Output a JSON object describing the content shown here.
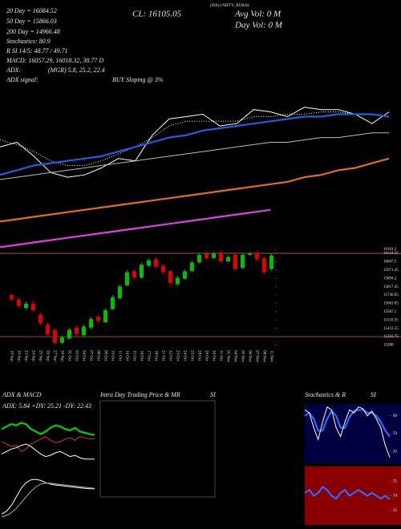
{
  "header": {
    "title": "(Nifty) NIFTY_RURAL",
    "ema20": "20 Day = 16084.52",
    "ema50": "50 Day = 15866.03",
    "close": "CL: 16105.05",
    "avg_vol": "Avg Vol: 0  M",
    "day_vol": "Day Vol: 0  M",
    "ema200": "200 Day = 14966.48",
    "stochastics": "Stochastics: 80.9",
    "rsi": "R SI 14/5: 48.77 / 49.71",
    "macd": "MACD: 16057.29, 16018.32, 38.77 D",
    "adx_label": "ADX:",
    "adx_values": "(MGR) 5.8, 25.2, 22.4",
    "adx_signal_label": "ADX signal:",
    "adx_signal": "BUY Sloping @ 3%"
  },
  "chart_data": [
    {
      "type": "candlestick",
      "categories": [
        "19 Sep",
        "20 Sep",
        "23 Sep",
        "24 Sep",
        "25 Sep",
        "26 Sep",
        "27 Sep",
        "30 Sep",
        "01 Oct",
        "03 Oct",
        "04 Oct",
        "07 Oct",
        "08 Oct",
        "09 Oct",
        "10 Oct",
        "11 Oct",
        "14 Oct",
        "15 Oct",
        "16 Oct",
        "17 Oct",
        "18 Oct",
        "21 Oct",
        "22 Oct",
        "23 Oct",
        "24 Oct",
        "25 Oct",
        "28 Oct",
        "29 Oct",
        "30 Oct",
        "31 Oct",
        "01 Nov",
        "04 Nov",
        "05 Nov",
        "06 Nov",
        "07 Nov",
        "08 Nov",
        "11 Nov"
      ],
      "open": [
        15740,
        15700,
        15620,
        15660,
        15560,
        15470,
        15420,
        15300,
        15340,
        15440,
        15370,
        15440,
        15540,
        15490,
        15610,
        15710,
        15830,
        15960,
        15900,
        16010,
        16070,
        16010,
        15960,
        15840,
        15890,
        15960,
        16040,
        16120,
        16080,
        16130,
        16050,
        16110,
        15990,
        16110,
        16130,
        16080,
        15980
      ],
      "high": [
        15760,
        15720,
        15680,
        15690,
        15580,
        15490,
        15430,
        15370,
        15440,
        15460,
        15470,
        15540,
        15560,
        15620,
        15740,
        15840,
        15970,
        15980,
        16040,
        16080,
        16090,
        16030,
        15970,
        15920,
        15980,
        16060,
        16130,
        16140,
        16140,
        16150,
        16110,
        16130,
        16130,
        16140,
        16150,
        16100,
        16120
      ],
      "low": [
        15680,
        15620,
        15600,
        15580,
        15460,
        15360,
        15280,
        15290,
        15330,
        15360,
        15350,
        15420,
        15480,
        15480,
        15600,
        15700,
        15820,
        15880,
        15890,
        16000,
        15990,
        15930,
        15830,
        15820,
        15880,
        15950,
        16030,
        16060,
        16070,
        16030,
        16040,
        15960,
        15980,
        16100,
        16050,
        15930,
        15960
      ],
      "close": [
        15700,
        15640,
        15660,
        15600,
        15480,
        15380,
        15300,
        15350,
        15420,
        15380,
        15450,
        15520,
        15500,
        15600,
        15720,
        15820,
        15950,
        15900,
        16020,
        16060,
        16000,
        15950,
        15850,
        15900,
        15960,
        16040,
        16110,
        16080,
        16120,
        16050,
        16090,
        15980,
        16110,
        16120,
        16070,
        15950,
        16105.05
      ],
      "up_color": "#00c000",
      "down_color": "#e00000",
      "levels": [
        16124.55,
        15356.75
      ],
      "level_color": "#c8641e",
      "ylim": [
        15261,
        16243
      ],
      "yticks": [
        16161.3,
        16124.55,
        16047.5,
        15971.45,
        15894.2,
        15817.45,
        15740.65,
        15663.85,
        15587.1,
        15510.35,
        15433.55,
        15356.75,
        15280
      ]
    },
    {
      "type": "line",
      "ylim": [
        -10,
        100
      ],
      "series": [
        {
          "color": "#ffffff",
          "style": "solid",
          "values": [
            37,
            39,
            33,
            26,
            24,
            25,
            28,
            32,
            31,
            42,
            49,
            50,
            51,
            46,
            47,
            53,
            52,
            50,
            54,
            53,
            53,
            51,
            47,
            52
          ]
        },
        {
          "color": "#ffffff",
          "style": "dotted",
          "values": [
            40,
            38,
            35,
            31,
            29,
            29,
            31,
            34,
            37,
            41,
            46,
            48,
            48,
            48,
            48,
            50,
            50,
            51,
            51,
            52,
            52,
            51,
            51,
            50
          ]
        },
        {
          "color": "#1f5fe0",
          "style": "bold",
          "values": [
            25,
            27,
            29,
            30,
            31,
            32,
            33,
            35,
            37,
            39,
            41,
            42,
            44,
            45,
            46,
            47,
            48,
            49,
            50,
            50,
            51,
            51,
            51,
            50
          ]
        },
        {
          "color": "#bbbbbb",
          "style": "solid",
          "values": [
            23,
            24,
            25,
            26,
            27,
            28,
            29,
            30,
            31,
            32,
            33,
            34,
            35,
            36,
            37,
            38,
            39,
            39,
            40,
            41,
            41,
            42,
            43,
            43
          ]
        },
        {
          "color": "#e07010",
          "style": "bold",
          "values": [
            5,
            6,
            7,
            8,
            9,
            10,
            11,
            12,
            13,
            14,
            15,
            16,
            17,
            18,
            19,
            20,
            21,
            22,
            24,
            25,
            27,
            28,
            30,
            32
          ]
        },
        {
          "color": "#e040e0",
          "style": "bold",
          "values": [
            -6,
            -5,
            -4,
            -3,
            -2,
            -1,
            0,
            1,
            2,
            3,
            4,
            5,
            6,
            7,
            8,
            9,
            10,
            null,
            null,
            null,
            null,
            null,
            null,
            null
          ]
        }
      ]
    },
    {
      "type": "line",
      "title": "ADX  & MACD",
      "annotation": "ADX: 5.84  +DY: 25.21  -DY: 22.43",
      "ylim": [
        0,
        45
      ],
      "series": [
        {
          "color": "#00d000",
          "style": "bold",
          "values": [
            30,
            32,
            34,
            33,
            35,
            34,
            30,
            28,
            26,
            28,
            31,
            33,
            32,
            30,
            29,
            31,
            28,
            27,
            26,
            25.21
          ]
        },
        {
          "color": "#e03030",
          "style": "solid",
          "values": [
            20,
            18,
            16,
            17,
            12,
            14,
            18,
            20,
            22,
            24,
            21,
            19,
            20,
            22,
            23,
            21,
            24,
            23,
            22,
            22.43
          ]
        },
        {
          "color": "#ffffff",
          "style": "solid",
          "values": [
            10,
            12,
            14,
            15,
            17,
            18,
            16,
            13,
            10,
            8,
            9,
            11,
            12,
            10,
            8,
            9,
            7,
            6,
            6,
            5.84
          ]
        }
      ]
    },
    {
      "type": "line",
      "ylim": [
        -80,
        100
      ],
      "series": [
        {
          "color": "#ffffff",
          "style": "solid",
          "values": [
            -50,
            -40,
            -20,
            10,
            40,
            60,
            70,
            72,
            68,
            60,
            55,
            52,
            50,
            48,
            46,
            44,
            42,
            40,
            39,
            38.77
          ]
        },
        {
          "color": "#aaaaaa",
          "style": "solid",
          "values": [
            -60,
            -55,
            -45,
            -30,
            -10,
            10,
            30,
            45,
            55,
            58,
            58,
            56,
            54,
            52,
            50,
            48,
            46,
            44,
            42,
            40
          ]
        }
      ]
    },
    {
      "type": "panel",
      "title": "Intra Day Trading Price  & MR",
      "title_suffix": "SI"
    },
    {
      "type": "line",
      "title": "Stochastics  & R",
      "title_suffix": "SI",
      "background": "#000040",
      "ylim": [
        0,
        100
      ],
      "yticks": [
        80,
        50,
        20
      ],
      "series": [
        {
          "color": "#2a6cff",
          "style": "bold",
          "values": [
            80,
            85,
            75,
            55,
            55,
            75,
            88,
            80,
            60,
            60,
            78,
            88,
            90,
            90,
            85,
            85,
            80,
            70,
            55,
            45
          ]
        },
        {
          "color": "#ffffff",
          "style": "solid",
          "values": [
            90,
            85,
            60,
            40,
            70,
            95,
            90,
            60,
            45,
            70,
            90,
            85,
            95,
            92,
            80,
            88,
            75,
            60,
            30,
            10
          ]
        }
      ]
    },
    {
      "type": "line",
      "background": "#8a0000",
      "ylim": [
        40,
        60
      ],
      "yticks": [
        55,
        50,
        45
      ],
      "series": [
        {
          "color": "#2a6cff",
          "style": "bold",
          "values": [
            51,
            52,
            50,
            51,
            53,
            52,
            50,
            49,
            51,
            52,
            50,
            51,
            52,
            51,
            50,
            51,
            50,
            49,
            50,
            48.77
          ]
        }
      ]
    }
  ]
}
